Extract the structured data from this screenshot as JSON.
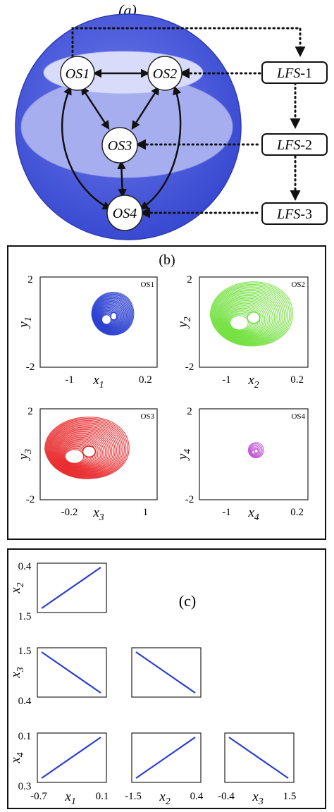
{
  "panel_a": {
    "label": "(a)",
    "nodes": [
      "OS1",
      "OS2",
      "OS3",
      "OS4"
    ],
    "boxes": [
      {
        "italic": "LFS",
        "suffix": "-1"
      },
      {
        "italic": "LFS",
        "suffix": "-2"
      },
      {
        "italic": "LFS",
        "suffix": "-3"
      }
    ],
    "colors": {
      "sphere": "#4858dc",
      "inner": "#a6aef0",
      "innermost": "#d8dcfa"
    }
  },
  "panel_b": {
    "label": "(b)",
    "plots": [
      {
        "name": "OS1",
        "xlabel": "x",
        "xsub": "1",
        "ylabel": "y",
        "ysub": "1",
        "xticks": [
          "-1",
          "0.2"
        ],
        "yticks": [
          "2",
          "-2"
        ],
        "color": "#2b3fd0"
      },
      {
        "name": "OS2",
        "xlabel": "x",
        "xsub": "2",
        "ylabel": "y",
        "ysub": "2",
        "xticks": [
          "-1",
          "0.2"
        ],
        "yticks": [
          "2",
          "-2"
        ],
        "color": "#6fe03a"
      },
      {
        "name": "OS3",
        "xlabel": "x",
        "xsub": "3",
        "ylabel": "y",
        "ysub": "3",
        "xticks": [
          "-0.2",
          "1"
        ],
        "yticks": [
          "2",
          "-2"
        ],
        "color": "#e8282a"
      },
      {
        "name": "OS4",
        "xlabel": "x",
        "xsub": "4",
        "ylabel": "y",
        "ysub": "4",
        "xticks": [
          "-1",
          "0.2"
        ],
        "yticks": [
          "2",
          "-2"
        ],
        "color": "#c255d6"
      }
    ]
  },
  "panel_c": {
    "label": "(c)",
    "line_color": "#2b3fd0",
    "rows": [
      {
        "ylabel": "x",
        "ysub": "2",
        "yticks": [
          "0.4",
          "1.5"
        ]
      },
      {
        "ylabel": "x",
        "ysub": "3",
        "yticks": [
          "1.5",
          "0.4"
        ]
      },
      {
        "ylabel": "x",
        "ysub": "4",
        "yticks": [
          "0.1",
          "0.3"
        ]
      }
    ],
    "columns": [
      {
        "xlabel": "x",
        "xsub": "1",
        "xticks": [
          "-0.7",
          "0.1"
        ]
      },
      {
        "xlabel": "x",
        "xsub": "2",
        "xticks": [
          "-1.5",
          "0.4"
        ]
      },
      {
        "xlabel": "x",
        "xsub": "3",
        "xticks": [
          "-0.4",
          "1.5"
        ]
      }
    ]
  }
}
